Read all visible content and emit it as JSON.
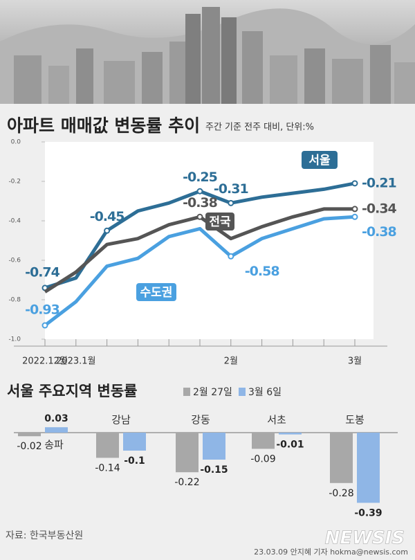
{
  "chart_data": [
    {
      "type": "line",
      "title": "아파트 매매값 변동률 추이",
      "subtitle": "주간 기준 전주 대비, 단위:%",
      "categories": [
        "2022.12월",
        "2023.1월",
        null,
        null,
        null,
        null,
        "2월",
        null,
        null,
        null,
        "3월"
      ],
      "ylim": [
        -1,
        0
      ],
      "yticks": [
        {
          "value": 0,
          "label": "0.0"
        },
        -0.2,
        -0.4,
        -0.6,
        -0.8,
        {
          "value": -1,
          "label": "-1.0"
        }
      ],
      "series": [
        {
          "name": "서울",
          "color": "#2d6e96",
          "values": [
            -0.74,
            -0.69,
            -0.45,
            -0.35,
            -0.31,
            -0.25,
            -0.31,
            -0.28,
            -0.26,
            -0.24,
            -0.21
          ],
          "value_labels": [
            "-0.74",
            null,
            "-0.45",
            null,
            null,
            "-0.25",
            "-0.31",
            null,
            null,
            null,
            "-0.21"
          ]
        },
        {
          "name": "전국",
          "color": "#555555",
          "values": [
            -0.76,
            -0.66,
            -0.52,
            -0.49,
            -0.42,
            -0.38,
            -0.49,
            -0.43,
            -0.38,
            -0.34,
            -0.34
          ],
          "value_labels": [
            null,
            null,
            null,
            null,
            null,
            "-0.38",
            null,
            null,
            null,
            null,
            "-0.34"
          ]
        },
        {
          "name": "수도권",
          "color": "#4aa0e0",
          "values": [
            -0.93,
            -0.81,
            -0.63,
            -0.59,
            -0.48,
            -0.44,
            -0.58,
            -0.49,
            -0.44,
            -0.39,
            -0.38
          ],
          "value_labels": [
            "-0.93",
            null,
            null,
            null,
            null,
            null,
            "-0.58",
            null,
            null,
            null,
            "-0.38"
          ]
        }
      ]
    },
    {
      "type": "bar",
      "title": "서울 주요지역 변동률",
      "categories": [
        "송파",
        "강남",
        "강동",
        "서초",
        "도봉"
      ],
      "series": [
        {
          "name": "2월 27일",
          "color": "#a8a8a8",
          "values": [
            -0.02,
            -0.14,
            -0.22,
            -0.09,
            -0.28
          ]
        },
        {
          "name": "3월 6일",
          "color": "#8fb6e6",
          "values": [
            0.03,
            -0.1,
            -0.15,
            -0.01,
            -0.39
          ]
        }
      ]
    }
  ],
  "source": "자료: 한국부동산원",
  "logo": "NEWSIS",
  "credit": "23.03.09 안지혜 기자 hokma@newsis.com"
}
